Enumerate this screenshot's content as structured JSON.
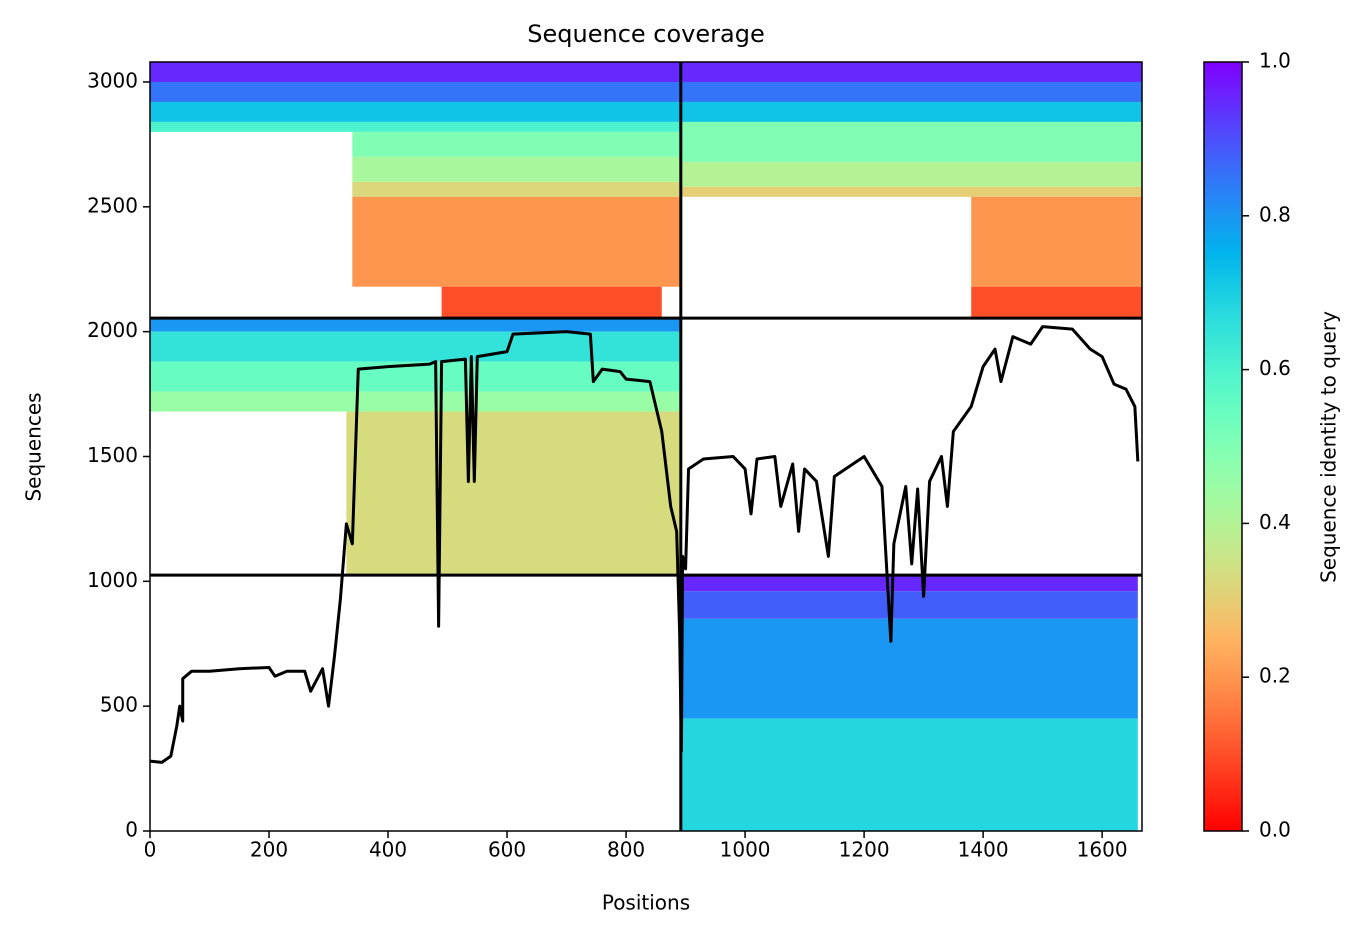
{
  "chart_data": {
    "type": "heatmap",
    "title": "Sequence coverage",
    "x_label": "Positions",
    "y_label": "Sequences",
    "xlim": [
      0,
      1667
    ],
    "ylim": [
      0,
      3080
    ],
    "xticks": [
      0,
      200,
      400,
      600,
      800,
      1000,
      1200,
      1400,
      1600
    ],
    "yticks": [
      0,
      500,
      1000,
      1500,
      2000,
      2500,
      3000
    ],
    "colormap": "rainbow_r",
    "colorbar": {
      "label": "Sequence identity to query",
      "lim": [
        0,
        1
      ],
      "ticks": [
        {
          "value": 0,
          "label": "0.0"
        },
        0.2,
        0.4,
        0.6,
        0.8,
        {
          "value": 1,
          "label": "1.0"
        }
      ]
    },
    "boundaries": {
      "x": [
        892
      ],
      "y": [
        1025,
        2054
      ],
      "color": "#000000"
    },
    "blocks": [
      {
        "x": [
          0,
          892
        ],
        "y": [
          3000,
          3080
        ],
        "identity": 0.95
      },
      {
        "x": [
          0,
          892
        ],
        "y": [
          2920,
          3000
        ],
        "identity": 0.85
      },
      {
        "x": [
          0,
          892
        ],
        "y": [
          2840,
          2920
        ],
        "identity": 0.72
      },
      {
        "x": [
          0,
          892
        ],
        "y": [
          2800,
          2840
        ],
        "identity": 0.6
      },
      {
        "x": [
          340,
          892
        ],
        "y": [
          2700,
          2800
        ],
        "identity": 0.5
      },
      {
        "x": [
          340,
          892
        ],
        "y": [
          2600,
          2700
        ],
        "identity": 0.42
      },
      {
        "x": [
          340,
          892
        ],
        "y": [
          2540,
          2600
        ],
        "identity": 0.32
      },
      {
        "x": [
          340,
          892
        ],
        "y": [
          2180,
          2540
        ],
        "identity": 0.2
      },
      {
        "x": [
          490,
          860
        ],
        "y": [
          2054,
          2180
        ],
        "identity": 0.1
      },
      {
        "x": [
          892,
          1667
        ],
        "y": [
          3000,
          3080
        ],
        "identity": 0.95
      },
      {
        "x": [
          892,
          1667
        ],
        "y": [
          2920,
          3000
        ],
        "identity": 0.85
      },
      {
        "x": [
          892,
          1667
        ],
        "y": [
          2840,
          2920
        ],
        "identity": 0.72
      },
      {
        "x": [
          892,
          1667
        ],
        "y": [
          2680,
          2840
        ],
        "identity": 0.5
      },
      {
        "x": [
          892,
          1667
        ],
        "y": [
          2580,
          2680
        ],
        "identity": 0.4
      },
      {
        "x": [
          892,
          1667
        ],
        "y": [
          2540,
          2580
        ],
        "identity": 0.3
      },
      {
        "x": [
          1380,
          1667
        ],
        "y": [
          2180,
          2540
        ],
        "identity": 0.2
      },
      {
        "x": [
          1380,
          1667
        ],
        "y": [
          2054,
          2180
        ],
        "identity": 0.1
      },
      {
        "x": [
          0,
          892
        ],
        "y": [
          2000,
          2054
        ],
        "identity": 0.8
      },
      {
        "x": [
          0,
          892
        ],
        "y": [
          1880,
          2000
        ],
        "identity": 0.65
      },
      {
        "x": [
          0,
          892
        ],
        "y": [
          1760,
          1880
        ],
        "identity": 0.55
      },
      {
        "x": [
          0,
          892
        ],
        "y": [
          1680,
          1760
        ],
        "identity": 0.45
      },
      {
        "x": [
          330,
          892
        ],
        "y": [
          1025,
          1680
        ],
        "identity": 0.33
      },
      {
        "x": [
          892,
          1660
        ],
        "y": [
          960,
          1025
        ],
        "identity": 0.95
      },
      {
        "x": [
          892,
          1660
        ],
        "y": [
          850,
          960
        ],
        "identity": 0.88
      },
      {
        "x": [
          892,
          1660
        ],
        "y": [
          450,
          850
        ],
        "identity": 0.8
      },
      {
        "x": [
          892,
          1660
        ],
        "y": [
          0,
          450
        ],
        "identity": 0.68
      }
    ],
    "coverage": {
      "color": "#000000",
      "x": [
        0,
        20,
        35,
        45,
        50,
        55,
        55,
        70,
        100,
        150,
        200,
        210,
        230,
        260,
        270,
        290,
        300,
        310,
        320,
        330,
        340,
        345,
        350,
        400,
        470,
        480,
        485,
        490,
        530,
        535,
        540,
        545,
        550,
        600,
        610,
        700,
        740,
        745,
        760,
        790,
        800,
        840,
        860,
        875,
        885,
        890,
        893,
        895,
        900,
        905,
        930,
        980,
        1000,
        1010,
        1020,
        1050,
        1060,
        1080,
        1090,
        1100,
        1120,
        1140,
        1150,
        1200,
        1230,
        1245,
        1250,
        1270,
        1280,
        1290,
        1300,
        1310,
        1330,
        1340,
        1350,
        1380,
        1400,
        1420,
        1430,
        1450,
        1480,
        1500,
        1550,
        1580,
        1600,
        1620,
        1640,
        1655,
        1660
      ],
      "values": [
        280,
        275,
        300,
        420,
        500,
        440,
        610,
        640,
        640,
        650,
        655,
        620,
        640,
        640,
        560,
        650,
        500,
        700,
        930,
        1230,
        1150,
        1500,
        1850,
        1860,
        1870,
        1880,
        820,
        1880,
        1890,
        1400,
        1900,
        1400,
        1900,
        1920,
        1990,
        2000,
        1990,
        1800,
        1850,
        1840,
        1810,
        1800,
        1600,
        1300,
        1200,
        800,
        320,
        1100,
        1050,
        1450,
        1490,
        1500,
        1450,
        1270,
        1490,
        1500,
        1300,
        1470,
        1200,
        1450,
        1400,
        1100,
        1420,
        1500,
        1380,
        760,
        1150,
        1380,
        1070,
        1370,
        940,
        1400,
        1500,
        1300,
        1600,
        1700,
        1860,
        1930,
        1800,
        1980,
        1950,
        2020,
        2010,
        1930,
        1900,
        1790,
        1770,
        1700,
        1480
      ]
    }
  }
}
